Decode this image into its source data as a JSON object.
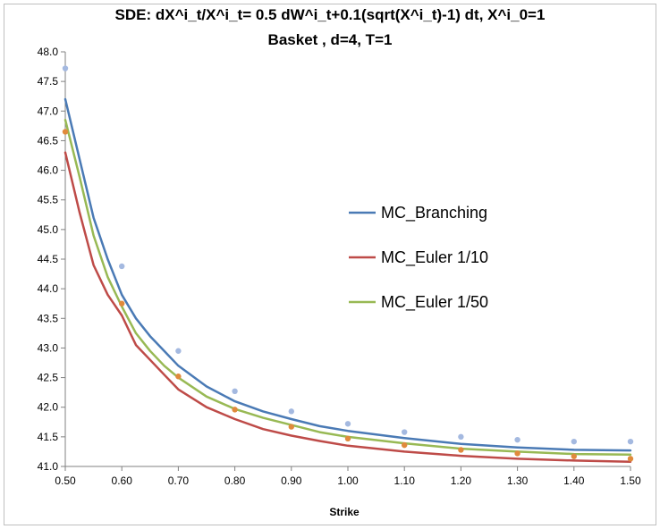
{
  "chart_data": {
    "type": "line",
    "title": "SDE: dX^i_t/X^i_t= 0.5 dW^i_t+0.1(sqrt(X^i_t)-1) dt, X^i_0=1",
    "subtitle": "Basket , d=4, T=1",
    "xlabel": "Strike",
    "ylabel": "",
    "xlim": [
      0.5,
      1.5
    ],
    "ylim": [
      41.0,
      48.0
    ],
    "x_ticks": [
      "0.50",
      "0.60",
      "0.70",
      "0.80",
      "0.90",
      "1.00",
      "1.10",
      "1.20",
      "1.30",
      "1.40",
      "1.50"
    ],
    "y_ticks": [
      "41.0",
      "41.5",
      "42.0",
      "42.5",
      "43.0",
      "43.5",
      "44.0",
      "44.5",
      "45.0",
      "45.5",
      "46.0",
      "46.5",
      "47.0",
      "47.5",
      "48.0"
    ],
    "grid": "none",
    "legend_position": "right-center",
    "series": [
      {
        "name": "MC_Branching",
        "color": "#4a7ab5",
        "style": "line",
        "x": [
          0.5,
          0.525,
          0.55,
          0.575,
          0.6,
          0.625,
          0.65,
          0.675,
          0.7,
          0.75,
          0.8,
          0.85,
          0.9,
          0.95,
          1.0,
          1.1,
          1.2,
          1.3,
          1.4,
          1.5
        ],
        "y": [
          47.2,
          46.2,
          45.2,
          44.5,
          43.9,
          43.5,
          43.2,
          42.95,
          42.7,
          42.35,
          42.1,
          41.93,
          41.8,
          41.68,
          41.6,
          41.48,
          41.38,
          41.32,
          41.28,
          41.27
        ]
      },
      {
        "name": "MC_Euler 1/10",
        "color": "#be4b48",
        "style": "line",
        "x": [
          0.5,
          0.525,
          0.55,
          0.575,
          0.6,
          0.625,
          0.65,
          0.675,
          0.7,
          0.75,
          0.8,
          0.85,
          0.9,
          0.95,
          1.0,
          1.1,
          1.2,
          1.3,
          1.4,
          1.5
        ],
        "y": [
          46.3,
          45.3,
          44.4,
          43.9,
          43.55,
          43.05,
          42.8,
          42.55,
          42.3,
          42.0,
          41.8,
          41.63,
          41.52,
          41.43,
          41.35,
          41.25,
          41.18,
          41.13,
          41.1,
          41.08
        ]
      },
      {
        "name": "MC_Euler 1/50",
        "color": "#98b954",
        "style": "line",
        "x": [
          0.5,
          0.525,
          0.55,
          0.575,
          0.6,
          0.625,
          0.65,
          0.675,
          0.7,
          0.75,
          0.8,
          0.85,
          0.9,
          0.95,
          1.0,
          1.1,
          1.2,
          1.3,
          1.4,
          1.5
        ],
        "y": [
          46.85,
          45.9,
          44.9,
          44.2,
          43.7,
          43.25,
          42.95,
          42.7,
          42.5,
          42.18,
          41.97,
          41.82,
          41.7,
          41.58,
          41.5,
          41.39,
          41.3,
          41.25,
          41.21,
          41.2
        ]
      },
      {
        "color": "#a4b9e0",
        "style": "points",
        "x": [
          0.5,
          0.6,
          0.7,
          0.8,
          0.9,
          1.0,
          1.1,
          1.2,
          1.3,
          1.4,
          1.5
        ],
        "y": [
          47.72,
          44.38,
          42.95,
          42.27,
          41.93,
          41.72,
          41.58,
          41.5,
          41.45,
          41.42,
          41.42
        ]
      },
      {
        "color": "#e08a3c",
        "style": "points",
        "x": [
          0.5,
          0.6,
          0.7,
          0.8,
          0.9,
          1.0,
          1.1,
          1.2,
          1.3,
          1.4,
          1.5
        ],
        "y": [
          46.65,
          43.75,
          42.52,
          41.96,
          41.67,
          41.47,
          41.36,
          41.28,
          41.22,
          41.17,
          41.13
        ]
      }
    ]
  }
}
